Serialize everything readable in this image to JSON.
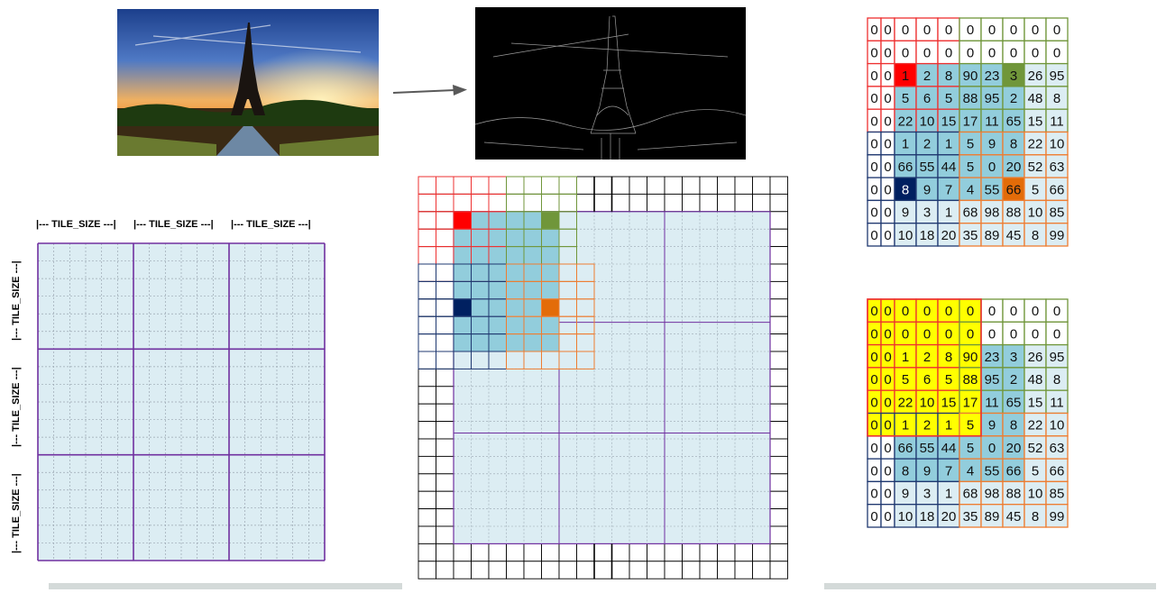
{
  "tile_label": "|--- TILE_SIZE ---|",
  "colors": {
    "tile_fill": "#dcedf3",
    "tile_border": "#7030a0",
    "sub_grid": "#9aa7b2",
    "region_red": "#ee3030",
    "region_green": "#70963a",
    "region_navy": "#1f3870",
    "region_orange": "#ee7d31",
    "highlight_blue": "#92cddc",
    "light_blue": "#dcedf3",
    "marker_red": "#ff0000",
    "marker_green": "#70963a",
    "marker_navy": "#002060",
    "marker_orange": "#e36c09",
    "halo_yellow": "#ffff00",
    "arrow": "#595959",
    "baseline": "#d4dad9"
  },
  "matrix_top": [
    [
      "0",
      "0",
      "0",
      "0",
      "0",
      "0",
      "0",
      "0",
      "0",
      "0"
    ],
    [
      "0",
      "0",
      "0",
      "0",
      "0",
      "0",
      "0",
      "0",
      "0",
      "0"
    ],
    [
      "0",
      "0",
      "1",
      "2",
      "8",
      "90",
      "23",
      "3",
      "26",
      "95"
    ],
    [
      "0",
      "0",
      "5",
      "6",
      "5",
      "88",
      "95",
      "2",
      "48",
      "8"
    ],
    [
      "0",
      "0",
      "22",
      "10",
      "15",
      "17",
      "11",
      "65",
      "15",
      "11"
    ],
    [
      "0",
      "0",
      "1",
      "2",
      "1",
      "5",
      "9",
      "8",
      "22",
      "10"
    ],
    [
      "0",
      "0",
      "66",
      "55",
      "44",
      "5",
      "0",
      "20",
      "52",
      "63"
    ],
    [
      "0",
      "0",
      "8",
      "9",
      "7",
      "4",
      "55",
      "66",
      "5",
      "66"
    ],
    [
      "0",
      "0",
      "9",
      "3",
      "1",
      "68",
      "98",
      "88",
      "10",
      "85"
    ],
    [
      "0",
      "0",
      "10",
      "18",
      "20",
      "35",
      "89",
      "45",
      "8",
      "99"
    ]
  ],
  "matrix_bottom": [
    [
      "0",
      "0",
      "0",
      "0",
      "0",
      "0",
      "0",
      "0",
      "0",
      "0"
    ],
    [
      "0",
      "0",
      "0",
      "0",
      "0",
      "0",
      "0",
      "0",
      "0",
      "0"
    ],
    [
      "0",
      "0",
      "1",
      "2",
      "8",
      "90",
      "23",
      "3",
      "26",
      "95"
    ],
    [
      "0",
      "0",
      "5",
      "6",
      "5",
      "88",
      "95",
      "2",
      "48",
      "8"
    ],
    [
      "0",
      "0",
      "22",
      "10",
      "15",
      "17",
      "11",
      "65",
      "15",
      "11"
    ],
    [
      "0",
      "0",
      "1",
      "2",
      "1",
      "5",
      "9",
      "8",
      "22",
      "10"
    ],
    [
      "0",
      "0",
      "66",
      "55",
      "44",
      "5",
      "0",
      "20",
      "52",
      "63"
    ],
    [
      "0",
      "0",
      "8",
      "9",
      "7",
      "4",
      "55",
      "66",
      "5",
      "66"
    ],
    [
      "0",
      "0",
      "9",
      "3",
      "1",
      "68",
      "98",
      "88",
      "10",
      "85"
    ],
    [
      "0",
      "0",
      "10",
      "18",
      "20",
      "35",
      "89",
      "45",
      "8",
      "99"
    ]
  ]
}
